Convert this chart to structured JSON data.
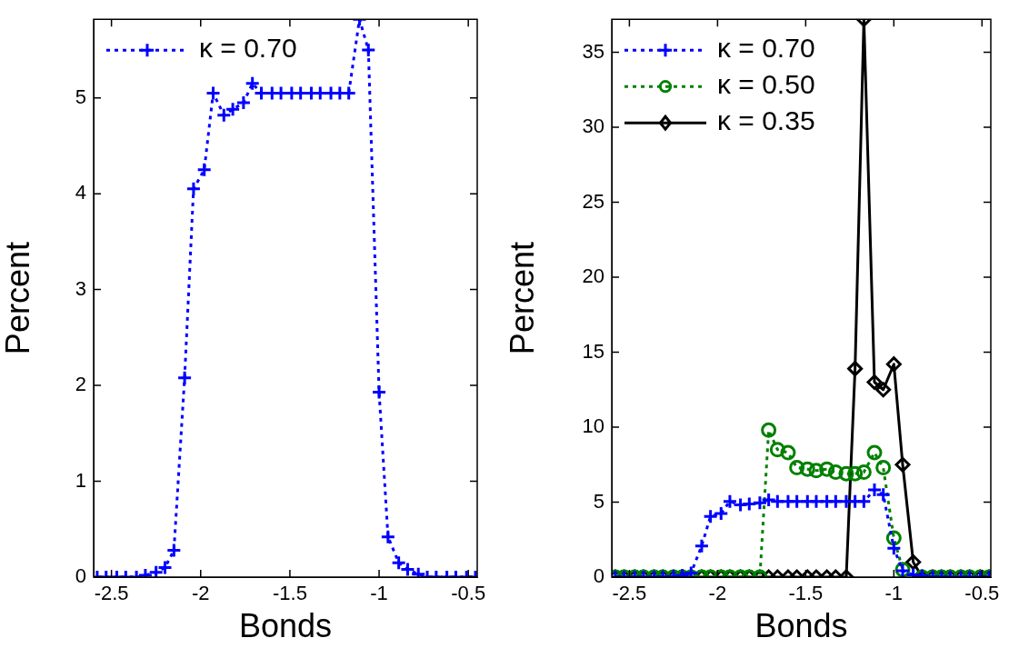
{
  "chart_data": [
    {
      "type": "line",
      "xlabel": "Bonds",
      "ylabel": "Percent",
      "xlim": [
        -2.6,
        -0.45
      ],
      "ylim": [
        0,
        5.82
      ],
      "xticks": [
        -2.5,
        -2,
        -1.5,
        -1,
        -0.5
      ],
      "yticks": [
        0,
        1,
        2,
        3,
        4,
        5
      ],
      "legend": "top left",
      "x": [
        -2.58,
        -2.53,
        -2.47,
        -2.42,
        -2.36,
        -2.31,
        -2.25,
        -2.2,
        -2.15,
        -2.09,
        -2.04,
        -1.98,
        -1.93,
        -1.87,
        -1.82,
        -1.76,
        -1.71,
        -1.66,
        -1.6,
        -1.55,
        -1.49,
        -1.44,
        -1.38,
        -1.33,
        -1.27,
        -1.22,
        -1.17,
        -1.11,
        -1.06,
        -1.0,
        -0.95,
        -0.89,
        -0.84,
        -0.78,
        -0.73,
        -0.68,
        -0.62,
        -0.57,
        -0.51,
        -0.46
      ],
      "series": [
        {
          "name": "κ = 0.70",
          "color": "#0000ff",
          "marker": "cross",
          "line_style": "dotted",
          "values": [
            0,
            0,
            0,
            0,
            0,
            0.02,
            0.05,
            0.1,
            0.28,
            2.08,
            4.05,
            4.25,
            5.05,
            4.82,
            4.88,
            4.95,
            5.15,
            5.05,
            5.05,
            5.05,
            5.05,
            5.05,
            5.05,
            5.05,
            5.05,
            5.05,
            5.05,
            5.82,
            5.5,
            1.93,
            0.42,
            0.15,
            0.08,
            0.03,
            0,
            0,
            0,
            0,
            0,
            0
          ]
        }
      ]
    },
    {
      "type": "line",
      "xlabel": "Bonds",
      "ylabel": "Percent",
      "xlim": [
        -2.6,
        -0.45
      ],
      "ylim": [
        0,
        37.2
      ],
      "xticks": [
        -2.5,
        -2,
        -1.5,
        -1,
        -0.5
      ],
      "yticks": [
        0,
        5,
        10,
        15,
        20,
        25,
        30,
        35
      ],
      "legend": "top left",
      "x": [
        -2.58,
        -2.53,
        -2.47,
        -2.42,
        -2.36,
        -2.31,
        -2.25,
        -2.2,
        -2.15,
        -2.09,
        -2.04,
        -1.98,
        -1.93,
        -1.87,
        -1.82,
        -1.76,
        -1.71,
        -1.66,
        -1.6,
        -1.55,
        -1.49,
        -1.44,
        -1.38,
        -1.33,
        -1.27,
        -1.22,
        -1.17,
        -1.11,
        -1.06,
        -1.0,
        -0.95,
        -0.89,
        -0.84,
        -0.78,
        -0.73,
        -0.68,
        -0.62,
        -0.57,
        -0.51,
        -0.46
      ],
      "series": [
        {
          "name": "κ = 0.70",
          "color": "#0000ff",
          "marker": "cross",
          "line_style": "dotted",
          "values": [
            0,
            0,
            0,
            0,
            0,
            0.02,
            0.05,
            0.1,
            0.28,
            2.08,
            4.05,
            4.25,
            5.05,
            4.82,
            4.88,
            4.95,
            5.15,
            5.05,
            5.05,
            5.05,
            5.05,
            5.05,
            5.05,
            5.05,
            5.05,
            5.05,
            5.05,
            5.82,
            5.5,
            1.93,
            0.42,
            0.15,
            0.08,
            0.03,
            0,
            0,
            0,
            0,
            0,
            0
          ]
        },
        {
          "name": "κ = 0.50",
          "color": "#008000",
          "marker": "circle",
          "line_style": "dotted",
          "values": [
            0,
            0,
            0,
            0,
            0,
            0,
            0,
            0,
            0,
            0,
            0,
            0,
            0,
            0,
            0,
            0,
            9.8,
            8.5,
            8.3,
            7.3,
            7.2,
            7.1,
            7.2,
            7.0,
            6.9,
            6.9,
            7.0,
            8.3,
            7.3,
            2.6,
            0.5,
            null,
            0,
            0,
            0,
            0,
            0,
            0,
            0,
            0
          ]
        },
        {
          "name": "κ = 0.35",
          "color": "#000000",
          "marker": "diamond",
          "line_style": "solid",
          "values": [
            0,
            0,
            0,
            0,
            0,
            0,
            0,
            0,
            0,
            0,
            0,
            0,
            0,
            0,
            0,
            0,
            0,
            0,
            0,
            0,
            0,
            0,
            0,
            0,
            0,
            13.9,
            37.2,
            13.0,
            12.5,
            14.2,
            7.5,
            1.0,
            0,
            0,
            0,
            0,
            0,
            0,
            0,
            0
          ]
        }
      ]
    }
  ]
}
